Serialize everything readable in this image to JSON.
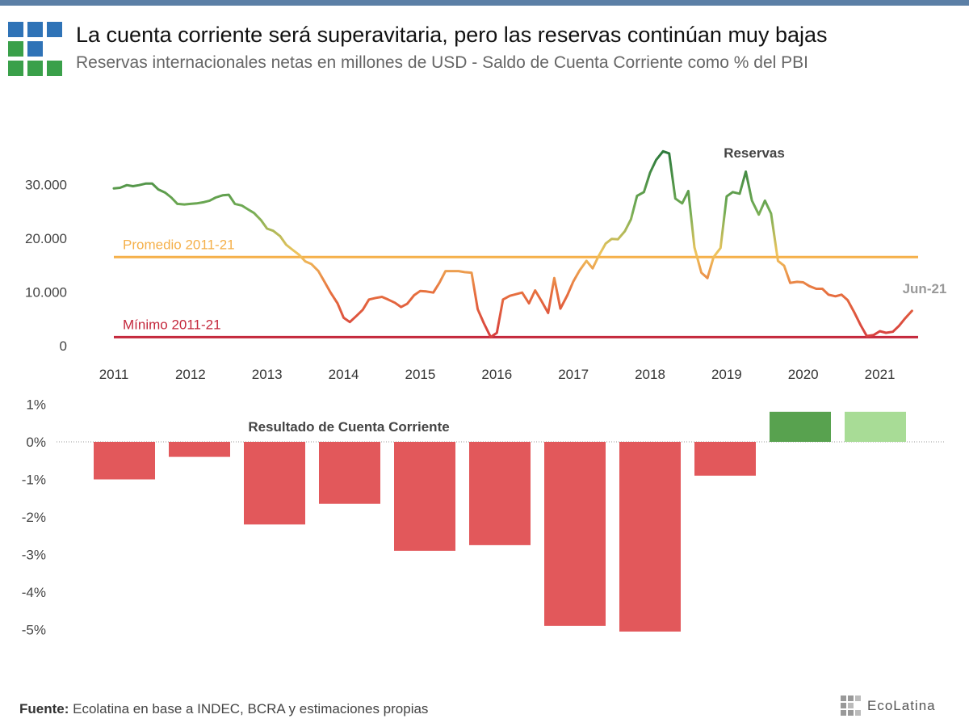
{
  "header": {
    "title": "La cuenta corriente será superavitaria, pero las reservas continúan muy bajas",
    "subtitle": "Reservas internacionales netas en millones de USD - Saldo de Cuenta Corriente como % del PBI"
  },
  "footer": {
    "source_label": "Fuente:",
    "source_text": " Ecolatina en base a INDEC, BCRA y estimaciones propias",
    "brand": "EcoLatina"
  },
  "colors": {
    "logo_blue": "#2f73b7",
    "logo_green": "#3aa04a",
    "average_line": "#f5b04a",
    "minimum_line": "#c4283c",
    "deficit_bar": "#e2585b",
    "surplus_bar_dark": "#58a24f",
    "surplus_bar_light": "#a8dc96"
  },
  "chart_data": [
    {
      "type": "line",
      "series_label": "Reservas",
      "end_label": "Jun-21",
      "x_ticks": [
        "2011",
        "2012",
        "2013",
        "2014",
        "2015",
        "2016",
        "2017",
        "2018",
        "2019",
        "2020",
        "2021"
      ],
      "y_ticks": [
        "0",
        "10.000",
        "20.000",
        "30.000"
      ],
      "ylim": [
        0,
        40000
      ],
      "xlim": [
        2011.0,
        2021.5
      ],
      "reference_lines": [
        {
          "label": "Promedio 2011-21",
          "value": 16500
        },
        {
          "label": "Mínimo 2011-21",
          "value": 1600
        }
      ],
      "points": [
        [
          2011.0,
          29300
        ],
        [
          2011.08,
          29400
        ],
        [
          2011.17,
          29900
        ],
        [
          2011.25,
          29700
        ],
        [
          2011.33,
          29900
        ],
        [
          2011.42,
          30200
        ],
        [
          2011.5,
          30200
        ],
        [
          2011.58,
          29100
        ],
        [
          2011.67,
          28500
        ],
        [
          2011.75,
          27600
        ],
        [
          2011.83,
          26400
        ],
        [
          2011.92,
          26300
        ],
        [
          2012.0,
          26400
        ],
        [
          2012.08,
          26500
        ],
        [
          2012.17,
          26700
        ],
        [
          2012.25,
          27000
        ],
        [
          2012.33,
          27600
        ],
        [
          2012.42,
          28000
        ],
        [
          2012.5,
          28100
        ],
        [
          2012.58,
          26400
        ],
        [
          2012.67,
          26100
        ],
        [
          2012.75,
          25400
        ],
        [
          2012.83,
          24700
        ],
        [
          2012.92,
          23400
        ],
        [
          2013.0,
          21800
        ],
        [
          2013.08,
          21400
        ],
        [
          2013.17,
          20400
        ],
        [
          2013.25,
          18800
        ],
        [
          2013.33,
          17900
        ],
        [
          2013.42,
          16900
        ],
        [
          2013.5,
          15700
        ],
        [
          2013.58,
          15200
        ],
        [
          2013.67,
          13900
        ],
        [
          2013.75,
          11900
        ],
        [
          2013.83,
          9900
        ],
        [
          2013.92,
          7900
        ],
        [
          2014.0,
          5200
        ],
        [
          2014.08,
          4400
        ],
        [
          2014.17,
          5600
        ],
        [
          2014.25,
          6700
        ],
        [
          2014.33,
          8600
        ],
        [
          2014.42,
          8900
        ],
        [
          2014.5,
          9100
        ],
        [
          2014.58,
          8600
        ],
        [
          2014.67,
          8000
        ],
        [
          2014.75,
          7200
        ],
        [
          2014.83,
          7800
        ],
        [
          2014.92,
          9400
        ],
        [
          2015.0,
          10200
        ],
        [
          2015.08,
          10100
        ],
        [
          2015.17,
          9900
        ],
        [
          2015.25,
          11700
        ],
        [
          2015.33,
          13900
        ],
        [
          2015.42,
          13900
        ],
        [
          2015.5,
          13900
        ],
        [
          2015.58,
          13700
        ],
        [
          2015.67,
          13600
        ],
        [
          2015.75,
          6800
        ],
        [
          2015.83,
          4200
        ],
        [
          2015.92,
          1600
        ],
        [
          2016.0,
          2400
        ],
        [
          2016.08,
          8600
        ],
        [
          2016.17,
          9300
        ],
        [
          2016.25,
          9600
        ],
        [
          2016.33,
          9900
        ],
        [
          2016.42,
          7900
        ],
        [
          2016.5,
          10300
        ],
        [
          2016.58,
          8400
        ],
        [
          2016.67,
          6100
        ],
        [
          2016.75,
          12600
        ],
        [
          2016.83,
          6900
        ],
        [
          2016.92,
          9400
        ],
        [
          2017.0,
          12000
        ],
        [
          2017.08,
          14000
        ],
        [
          2017.17,
          15800
        ],
        [
          2017.25,
          14400
        ],
        [
          2017.33,
          16700
        ],
        [
          2017.42,
          19000
        ],
        [
          2017.5,
          19900
        ],
        [
          2017.58,
          19800
        ],
        [
          2017.67,
          21300
        ],
        [
          2017.75,
          23500
        ],
        [
          2017.83,
          27900
        ],
        [
          2017.92,
          28600
        ],
        [
          2018.0,
          32200
        ],
        [
          2018.08,
          34600
        ],
        [
          2018.17,
          36200
        ],
        [
          2018.25,
          35800
        ],
        [
          2018.33,
          27400
        ],
        [
          2018.42,
          26500
        ],
        [
          2018.5,
          28800
        ],
        [
          2018.58,
          18300
        ],
        [
          2018.67,
          13600
        ],
        [
          2018.75,
          12600
        ],
        [
          2018.83,
          16500
        ],
        [
          2018.92,
          18200
        ],
        [
          2019.0,
          27800
        ],
        [
          2019.08,
          28600
        ],
        [
          2019.17,
          28300
        ],
        [
          2019.25,
          32400
        ],
        [
          2019.33,
          27000
        ],
        [
          2019.42,
          24400
        ],
        [
          2019.5,
          27000
        ],
        [
          2019.58,
          24600
        ],
        [
          2019.67,
          15800
        ],
        [
          2019.75,
          14900
        ],
        [
          2019.83,
          11700
        ],
        [
          2019.92,
          11900
        ],
        [
          2020.0,
          11800
        ],
        [
          2020.08,
          11100
        ],
        [
          2020.17,
          10600
        ],
        [
          2020.25,
          10600
        ],
        [
          2020.33,
          9500
        ],
        [
          2020.42,
          9200
        ],
        [
          2020.5,
          9500
        ],
        [
          2020.58,
          8500
        ],
        [
          2020.67,
          6100
        ],
        [
          2020.75,
          3800
        ],
        [
          2020.83,
          1800
        ],
        [
          2020.92,
          2000
        ],
        [
          2021.0,
          2700
        ],
        [
          2021.08,
          2400
        ],
        [
          2021.17,
          2600
        ],
        [
          2021.25,
          3700
        ],
        [
          2021.33,
          5100
        ],
        [
          2021.42,
          6500
        ]
      ]
    },
    {
      "type": "bar",
      "series_label": "Resultado de Cuenta Corriente",
      "categories": [
        "2011",
        "2012",
        "2013",
        "2014",
        "2015",
        "2016",
        "2017",
        "2018",
        "2019",
        "2020",
        "2021"
      ],
      "values": [
        -1.0,
        -0.4,
        -2.2,
        -1.65,
        -2.9,
        -2.75,
        -4.9,
        -5.05,
        -0.9,
        0.8,
        0.8
      ],
      "y_ticks": [
        "1%",
        "0%",
        "-1%",
        "-2%",
        "-3%",
        "-4%",
        "-5%"
      ],
      "ylim": [
        -5.5,
        1.0
      ]
    }
  ]
}
